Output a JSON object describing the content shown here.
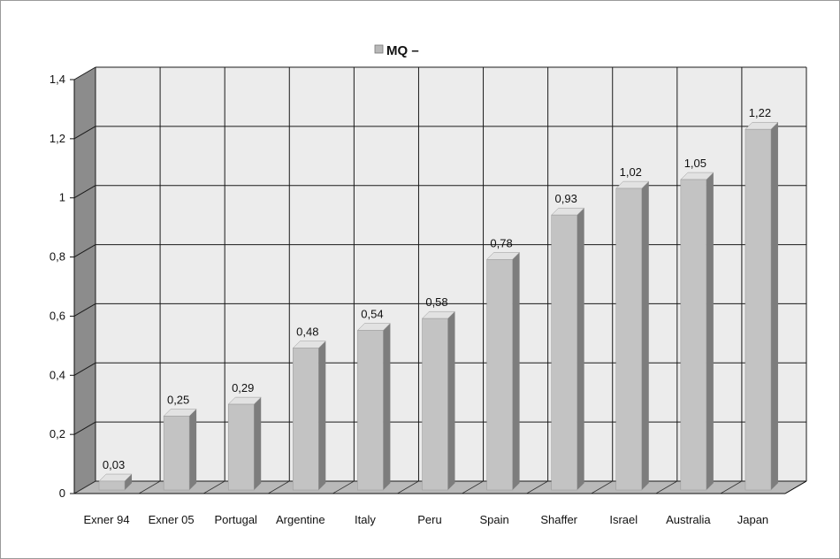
{
  "chart_data": {
    "type": "bar",
    "categories": [
      "Exner 94",
      "Exner 05",
      "Portugal",
      "Argentine",
      "Italy",
      "Peru",
      "Spain",
      "Shaffer",
      "Israel",
      "Australia",
      "Japan"
    ],
    "series": [
      {
        "name": "MQ –",
        "values": [
          0.03,
          0.25,
          0.29,
          0.48,
          0.54,
          0.58,
          0.78,
          0.93,
          1.02,
          1.05,
          1.22
        ]
      }
    ],
    "value_labels": [
      "0,03",
      "0,25",
      "0,29",
      "0,48",
      "0,54",
      "0,58",
      "0,78",
      "0,93",
      "1,02",
      "1,05",
      "1,22"
    ],
    "y_ticks": [
      0,
      0.2,
      0.4,
      0.6,
      0.8,
      1,
      1.2,
      1.4
    ],
    "y_tick_labels": [
      "0",
      "0,2",
      "0,4",
      "0,6",
      "0,8",
      "1",
      "1,2",
      "1,4"
    ],
    "ylim": [
      0,
      1.4
    ],
    "grid": true,
    "legend_position": "top-center",
    "three_d": true,
    "colors": {
      "bar_front": "#c3c3c3",
      "bar_side": "#7d7d7d",
      "bar_top": "#e2e2e2",
      "wall": "#ececec",
      "wall_side": "#8c8c8c",
      "floor": "#b9b9b9",
      "grid": "#1a1a1a"
    }
  }
}
